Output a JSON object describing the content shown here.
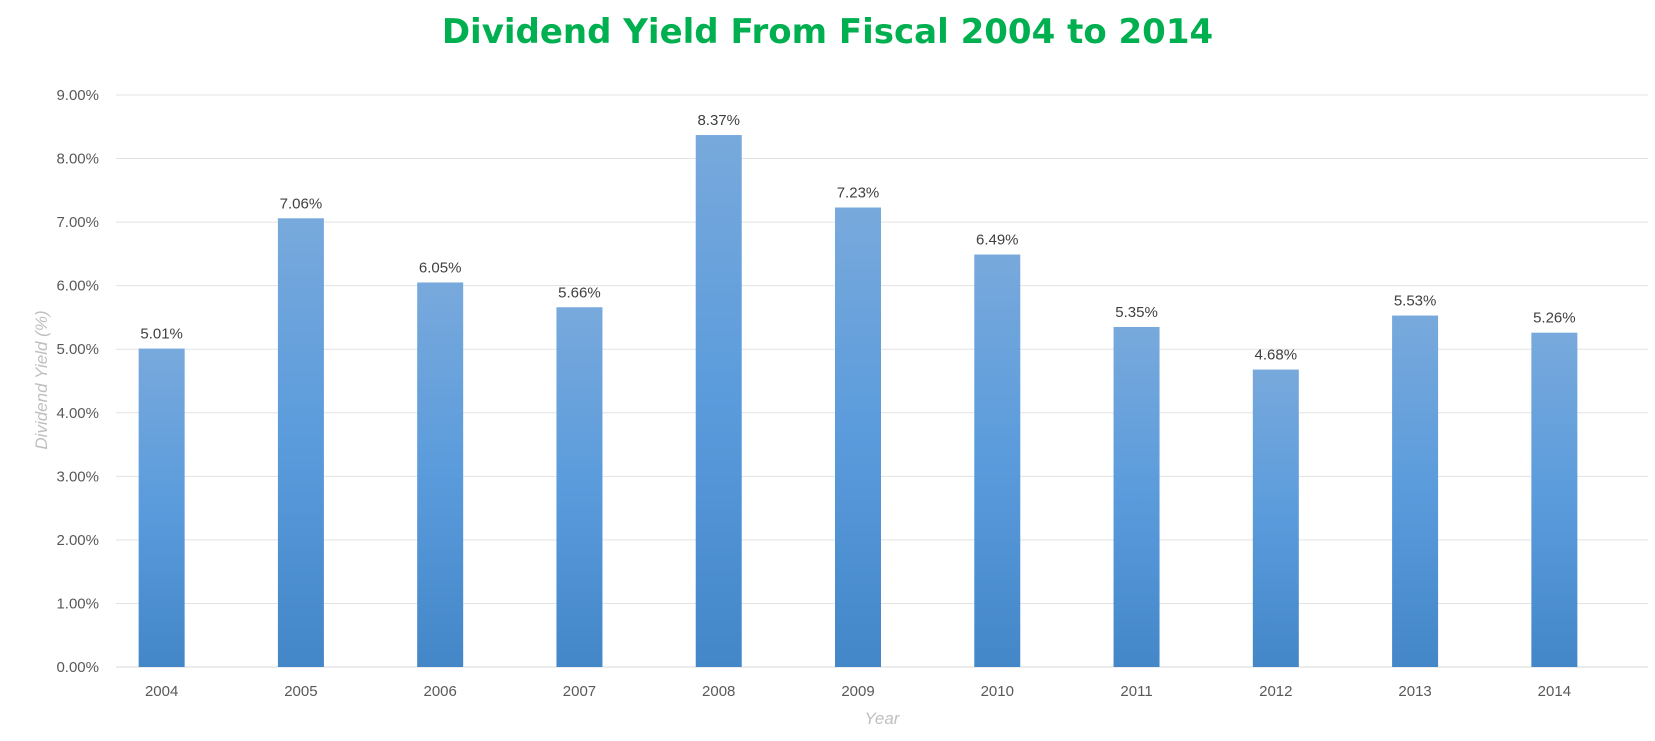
{
  "chart_data": {
    "type": "bar",
    "title": "Dividend Yield From Fiscal 2004 to 2014",
    "xlabel": "Year",
    "ylabel": "Dividend Yield (%)",
    "categories": [
      "2004",
      "2005",
      "2006",
      "2007",
      "2008",
      "2009",
      "2010",
      "2011",
      "2012",
      "2013",
      "2014"
    ],
    "values": [
      5.01,
      7.06,
      6.05,
      5.66,
      8.37,
      7.23,
      6.49,
      5.35,
      4.68,
      5.53,
      5.26
    ],
    "data_labels": [
      "5.01%",
      "7.06%",
      "6.05%",
      "5.66%",
      "8.37%",
      "7.23%",
      "6.49%",
      "5.35%",
      "4.68%",
      "5.53%",
      "5.26%"
    ],
    "ylim": [
      0,
      9
    ],
    "yticks": [
      0,
      1,
      2,
      3,
      4,
      5,
      6,
      7,
      8,
      9
    ],
    "ytick_labels": [
      "0.00%",
      "1.00%",
      "2.00%",
      "3.00%",
      "4.00%",
      "5.00%",
      "6.00%",
      "7.00%",
      "8.00%",
      "9.00%"
    ],
    "grid": true,
    "legend": "none",
    "colors": {
      "title": "#00b050",
      "bar_top": "#78a9dc",
      "bar_mid": "#5a9bdc",
      "bar_bottom": "#4387c8",
      "grid": "#e3e3e3"
    }
  }
}
